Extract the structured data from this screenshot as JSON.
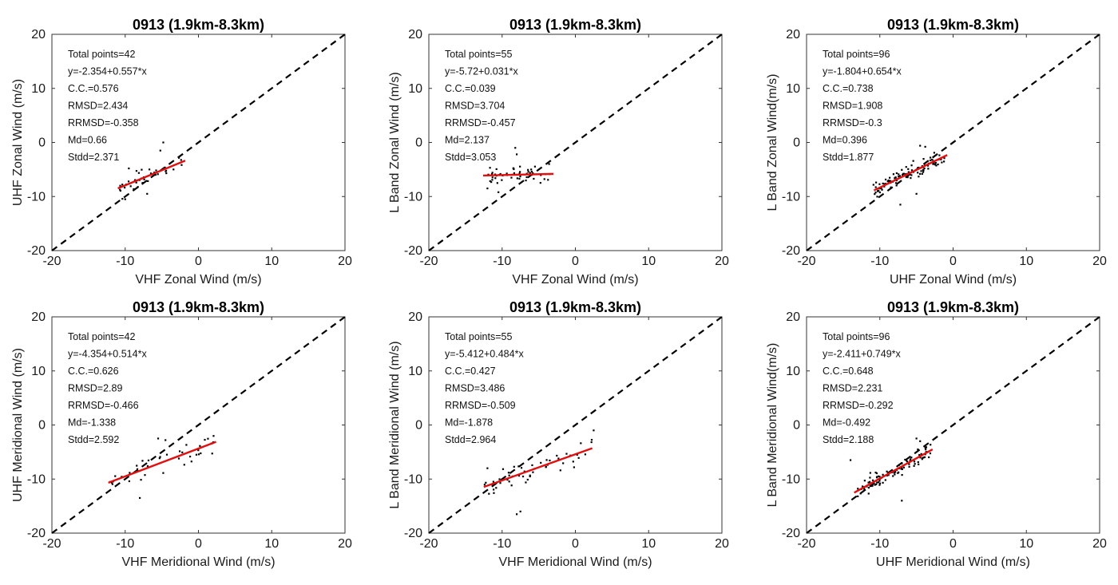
{
  "chart_data": [
    {
      "type": "scatter",
      "title": "0913 (1.9km-8.3km)",
      "xlabel": "VHF Zonal Wind (m/s)",
      "ylabel": "UHF Zonal Wind (m/s)",
      "xlim": [
        -20,
        20
      ],
      "ylim": [
        -20,
        20
      ],
      "xticks": [
        "-20",
        "-10",
        "0",
        "10",
        "20"
      ],
      "yticks": [
        "-20",
        "-10",
        "0",
        "10",
        "20"
      ],
      "stats": [
        "Total points=42",
        "y=-2.354+0.557*x",
        "C.C.=0.576",
        "RMSD=2.434",
        "RRMSD=-0.358",
        "Md=0.66",
        "Stdd=2.371"
      ],
      "fit": {
        "intercept": -2.354,
        "slope": 0.557,
        "x_range": [
          -11,
          -1.8
        ]
      },
      "cloud": {
        "n": 42,
        "x_range": [
          -11,
          -2
        ],
        "y_noise": 1.7,
        "seed": 11
      },
      "points": [
        [
          -4.8,
          0.0
        ],
        [
          -5.2,
          -1.5
        ],
        [
          -9.5,
          -4.8
        ],
        [
          -10.0,
          -10.5
        ],
        [
          -7.0,
          -9.5
        ]
      ]
    },
    {
      "type": "scatter",
      "title": "0913 (1.9km-8.3km)",
      "xlabel": "VHF Zonal Wind (m/s)",
      "ylabel": "L Band Zonal Wind (m/s)",
      "xlim": [
        -20,
        20
      ],
      "ylim": [
        -20,
        20
      ],
      "xticks": [
        "-20",
        "-10",
        "0",
        "10",
        "20"
      ],
      "yticks": [
        "-20",
        "-10",
        "0",
        "10",
        "20"
      ],
      "stats": [
        "Total points=55",
        "y=-5.72+0.031*x",
        "C.C.=0.039",
        "RMSD=3.704",
        "RRMSD=-0.457",
        "Md=2.137",
        "Stdd=3.053"
      ],
      "fit": {
        "intercept": -5.72,
        "slope": 0.031,
        "x_range": [
          -12.6,
          -3
        ]
      },
      "cloud": {
        "n": 55,
        "x_range": [
          -12,
          -3.5
        ],
        "y_noise": 1.7,
        "seed": 23
      },
      "points": [
        [
          -8.2,
          -1.0
        ],
        [
          -8.0,
          -2.2
        ],
        [
          -12.0,
          -8.5
        ],
        [
          -10.5,
          -9.2
        ]
      ]
    },
    {
      "type": "scatter",
      "title": "0913 (1.9km-8.3km)",
      "xlabel": "UHF Zonal Wind (m/s)",
      "ylabel": "L Band Zonal Wind(m/s)",
      "xlim": [
        -20,
        20
      ],
      "ylim": [
        -20,
        20
      ],
      "xticks": [
        "-20",
        "-10",
        "0",
        "10",
        "20"
      ],
      "yticks": [
        "-20",
        "-10",
        "0",
        "10",
        "20"
      ],
      "stats": [
        "Total points=96",
        "y=-1.804+0.654*x",
        "C.C.=0.738",
        "RMSD=1.908",
        "RRMSD=-0.3",
        "Md=0.396",
        "Stdd=1.877"
      ],
      "fit": {
        "intercept": -1.804,
        "slope": 0.654,
        "x_range": [
          -10.8,
          -0.8
        ]
      },
      "cloud": {
        "n": 96,
        "x_range": [
          -11,
          -1
        ],
        "y_noise": 1.4,
        "seed": 37
      },
      "points": [
        [
          -4.5,
          -0.6
        ],
        [
          -3.8,
          -0.8
        ],
        [
          -7.2,
          -11.5
        ],
        [
          -5.0,
          -9.5
        ]
      ]
    },
    {
      "type": "scatter",
      "title": "0913 (1.9km-8.3km)",
      "xlabel": "VHF Meridional Wind (m/s)",
      "ylabel": "UHF Meridional Wind (m/s)",
      "xlim": [
        -20,
        20
      ],
      "ylim": [
        -20,
        20
      ],
      "xticks": [
        "-20",
        "-10",
        "0",
        "10",
        "20"
      ],
      "yticks": [
        "-20",
        "-10",
        "0",
        "10",
        "20"
      ],
      "stats": [
        "Total points=42",
        "y=-4.354+0.514*x",
        "C.C.=0.626",
        "RMSD=2.89",
        "RRMSD=-0.466",
        "Md=-1.338",
        "Stdd=2.592"
      ],
      "fit": {
        "intercept": -4.354,
        "slope": 0.514,
        "x_range": [
          -12.3,
          2.4
        ]
      },
      "cloud": {
        "n": 42,
        "x_range": [
          -12,
          2.2
        ],
        "y_noise": 2.0,
        "seed": 41
      },
      "points": [
        [
          -5.5,
          -2.5
        ],
        [
          -4.5,
          -2.8
        ],
        [
          -8.0,
          -13.5
        ],
        [
          -12.0,
          -10.5
        ]
      ]
    },
    {
      "type": "scatter",
      "title": "0913 (1.9km-8.3km)",
      "xlabel": "VHF Meridional Wind (m/s)",
      "ylabel": "L Band Meridional Wind (m/s)",
      "xlim": [
        -20,
        20
      ],
      "ylim": [
        -20,
        20
      ],
      "xticks": [
        "-20",
        "-10",
        "0",
        "10",
        "20"
      ],
      "yticks": [
        "-20",
        "-10",
        "0",
        "10",
        "20"
      ],
      "stats": [
        "Total points=55",
        "y=-5.412+0.484*x",
        "C.C.=0.427",
        "RMSD=3.486",
        "RRMSD=-0.509",
        "Md=-1.878",
        "Stdd=2.964"
      ],
      "fit": {
        "intercept": -5.412,
        "slope": 0.484,
        "x_range": [
          -12.5,
          2.3
        ]
      },
      "cloud": {
        "n": 55,
        "x_range": [
          -12.5,
          2.3
        ],
        "y_noise": 2.3,
        "seed": 53
      },
      "points": [
        [
          -7.5,
          -16.0
        ],
        [
          -8.0,
          -16.5
        ],
        [
          2.5,
          -1.0
        ],
        [
          -12.0,
          -8.0
        ]
      ]
    },
    {
      "type": "scatter",
      "title": "0913 (1.9km-8.3km)",
      "xlabel": "UHF Meridional Wind (m/s)",
      "ylabel": "L Band Meridional Wind(m/s)",
      "xlim": [
        -20,
        20
      ],
      "ylim": [
        -20,
        20
      ],
      "xticks": [
        "-20",
        "-10",
        "0",
        "10",
        "20"
      ],
      "yticks": [
        "-20",
        "-10",
        "0",
        "10",
        "20"
      ],
      "stats": [
        "Total points=96",
        "y=-2.411+0.749*x",
        "C.C.=0.648",
        "RMSD=2.231",
        "RRMSD=-0.292",
        "Md=-0.492",
        "Stdd=2.188"
      ],
      "fit": {
        "intercept": -2.411,
        "slope": 0.749,
        "x_range": [
          -13.5,
          -2.8
        ]
      },
      "cloud": {
        "n": 96,
        "x_range": [
          -13,
          -3
        ],
        "y_noise": 1.5,
        "seed": 67
      },
      "points": [
        [
          -14.0,
          -6.5
        ],
        [
          -7.0,
          -14.0
        ],
        [
          -5.0,
          -2.5
        ],
        [
          -4.5,
          -3.0
        ]
      ]
    }
  ]
}
